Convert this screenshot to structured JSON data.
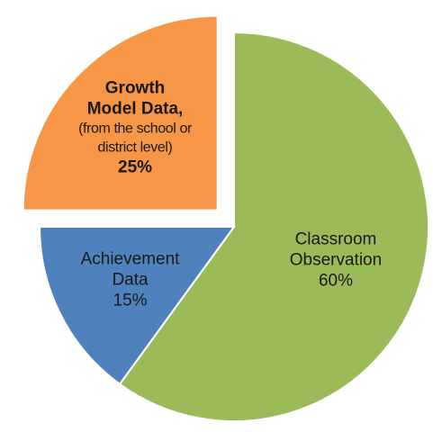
{
  "chart_data": {
    "type": "pie",
    "categories": [
      "Classroom Observation",
      "Achievement Data",
      "Growth Model Data,"
    ],
    "category_notes": [
      null,
      null,
      "(from the school or district level)"
    ],
    "values": [
      60,
      15,
      25
    ],
    "value_labels": [
      "60%",
      "15%",
      "25%"
    ],
    "colors": [
      "#9bbb59",
      "#4f81bd",
      "#f79646"
    ],
    "bold_labels": [
      false,
      false,
      true
    ],
    "explode": [
      0,
      0,
      0.12
    ],
    "start_angle": 0,
    "direction": "clockwise"
  }
}
